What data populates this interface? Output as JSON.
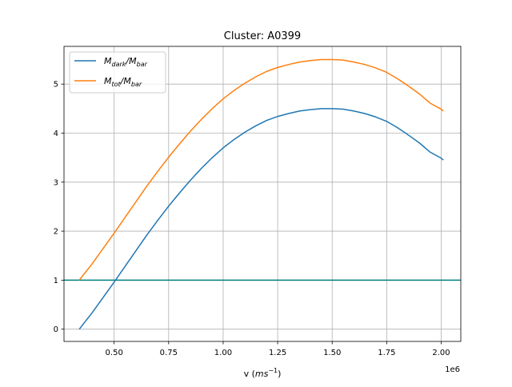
{
  "chart_data": {
    "type": "line",
    "title": "Cluster: A0399",
    "xlabel_main": "v (",
    "xlabel_math": "ms",
    "xlabel_sup": "−1",
    "xlabel_close": ")",
    "x_offset_label": "1e6",
    "xlim": [
      0.27,
      2.09
    ],
    "ylim": [
      -0.25,
      5.77
    ],
    "x_ticks": [
      0.5,
      0.75,
      1.0,
      1.25,
      1.5,
      1.75,
      2.0
    ],
    "x_tick_labels": [
      "0.50",
      "0.75",
      "1.00",
      "1.25",
      "1.50",
      "1.75",
      "2.00"
    ],
    "y_ticks": [
      0,
      1,
      2,
      3,
      4,
      5
    ],
    "y_tick_labels": [
      "0",
      "1",
      "2",
      "3",
      "4",
      "5"
    ],
    "grid": true,
    "legend_position": "top-left",
    "series": [
      {
        "name": "M_dark/M_bar",
        "legend_main1": "M",
        "legend_sub1": "dark",
        "legend_main2": "/M",
        "legend_sub2": "bar",
        "color": "#1f77b4",
        "x": [
          0.34,
          0.4,
          0.45,
          0.5,
          0.55,
          0.6,
          0.65,
          0.7,
          0.75,
          0.8,
          0.85,
          0.9,
          0.95,
          1.0,
          1.05,
          1.1,
          1.15,
          1.2,
          1.25,
          1.3,
          1.35,
          1.4,
          1.45,
          1.5,
          1.55,
          1.6,
          1.65,
          1.7,
          1.75,
          1.8,
          1.85,
          1.9,
          1.95,
          2.0,
          2.01
        ],
        "y": [
          0.0,
          0.34,
          0.65,
          0.96,
          1.28,
          1.6,
          1.92,
          2.22,
          2.51,
          2.78,
          3.04,
          3.28,
          3.5,
          3.7,
          3.87,
          4.02,
          4.15,
          4.26,
          4.34,
          4.4,
          4.45,
          4.48,
          4.5,
          4.5,
          4.49,
          4.45,
          4.4,
          4.33,
          4.24,
          4.11,
          3.96,
          3.8,
          3.61,
          3.49,
          3.45
        ]
      },
      {
        "name": "M_tot/M_bar",
        "legend_main1": "M",
        "legend_sub1": "tot",
        "legend_main2": "/M",
        "legend_sub2": "bar",
        "color": "#ff7f0e",
        "x": [
          0.34,
          0.4,
          0.45,
          0.5,
          0.55,
          0.6,
          0.65,
          0.7,
          0.75,
          0.8,
          0.85,
          0.9,
          0.95,
          1.0,
          1.05,
          1.1,
          1.15,
          1.2,
          1.25,
          1.3,
          1.35,
          1.4,
          1.45,
          1.5,
          1.55,
          1.6,
          1.65,
          1.7,
          1.75,
          1.8,
          1.85,
          1.9,
          1.95,
          2.0,
          2.01
        ],
        "y": [
          1.0,
          1.34,
          1.65,
          1.96,
          2.28,
          2.6,
          2.92,
          3.22,
          3.51,
          3.78,
          4.04,
          4.28,
          4.5,
          4.7,
          4.87,
          5.02,
          5.15,
          5.26,
          5.34,
          5.4,
          5.45,
          5.48,
          5.5,
          5.5,
          5.49,
          5.45,
          5.4,
          5.33,
          5.24,
          5.11,
          4.96,
          4.8,
          4.61,
          4.49,
          4.45
        ]
      }
    ],
    "reference_lines": [
      {
        "orientation": "horizontal",
        "y": 1.0,
        "color": "#008080"
      }
    ]
  }
}
